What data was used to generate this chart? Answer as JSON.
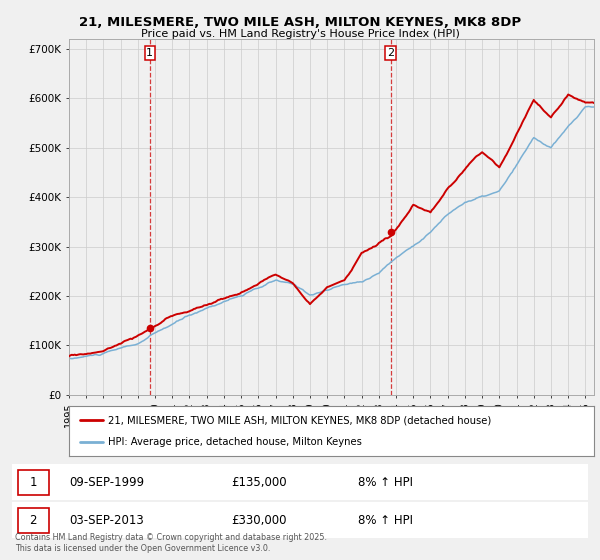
{
  "title": "21, MILESMERE, TWO MILE ASH, MILTON KEYNES, MK8 8DP",
  "subtitle": "Price paid vs. HM Land Registry's House Price Index (HPI)",
  "sale1_date": "09-SEP-1999",
  "sale1_price": 135000,
  "sale1_label": "1",
  "sale1_year": 1999.69,
  "sale2_date": "03-SEP-2013",
  "sale2_price": 330000,
  "sale2_label": "2",
  "sale2_year": 2013.69,
  "legend_property": "21, MILESMERE, TWO MILE ASH, MILTON KEYNES, MK8 8DP (detached house)",
  "legend_hpi": "HPI: Average price, detached house, Milton Keynes",
  "footnote": "Contains HM Land Registry data © Crown copyright and database right 2025.\nThis data is licensed under the Open Government Licence v3.0.",
  "property_color": "#cc0000",
  "hpi_color": "#7ab0d4",
  "vline_color": "#cc0000",
  "background_color": "#f0f0f0",
  "plot_bg_color": "#f0f0f0",
  "ylim": [
    0,
    720000
  ],
  "xlim_start": 1995.0,
  "xlim_end": 2025.5,
  "yticks": [
    0,
    100000,
    200000,
    300000,
    400000,
    500000,
    600000,
    700000
  ],
  "ytick_labels": [
    "£0",
    "£100K",
    "£200K",
    "£300K",
    "£400K",
    "£500K",
    "£600K",
    "£700K"
  ]
}
